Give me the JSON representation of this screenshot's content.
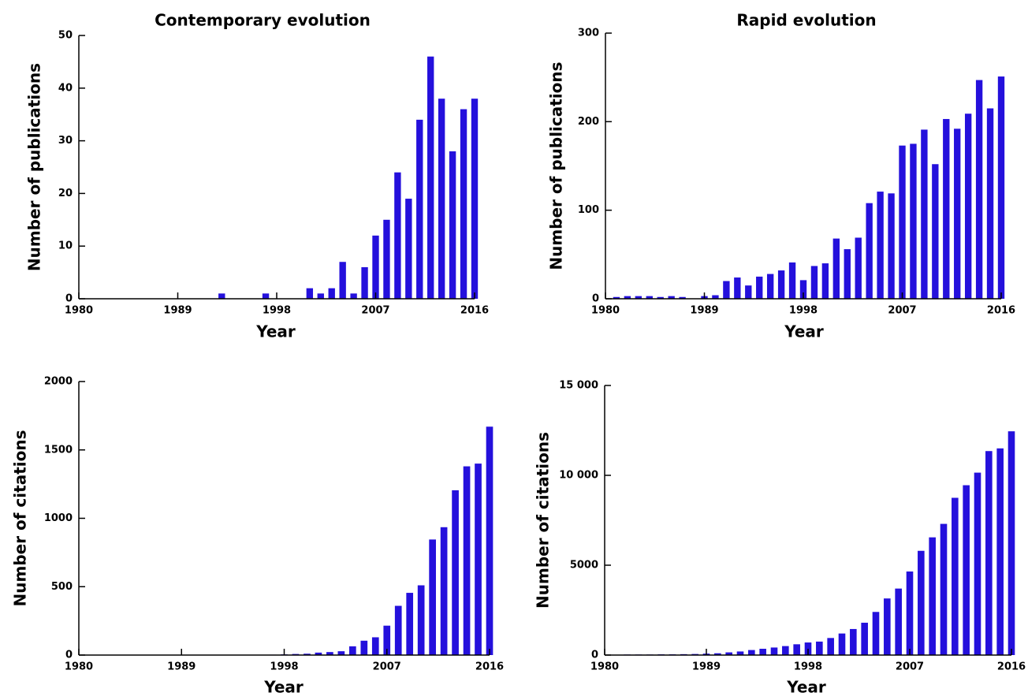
{
  "chart_data": [
    {
      "type": "bar",
      "title": "Contemporary evolution",
      "x_label": "Year",
      "y_label": "Number of publications",
      "color": "#2410dc",
      "x": [
        1980,
        1981,
        1982,
        1983,
        1984,
        1985,
        1986,
        1987,
        1988,
        1989,
        1990,
        1991,
        1992,
        1993,
        1994,
        1995,
        1996,
        1997,
        1998,
        1999,
        2000,
        2001,
        2002,
        2003,
        2004,
        2005,
        2006,
        2007,
        2008,
        2009,
        2010,
        2011,
        2012,
        2013,
        2014,
        2015,
        2016
      ],
      "values": [
        0,
        0,
        0,
        0,
        0,
        0,
        0,
        0,
        0,
        0,
        0,
        0,
        0,
        1,
        0,
        0,
        0,
        1,
        0,
        0,
        0,
        2,
        1,
        2,
        7,
        1,
        6,
        12,
        15,
        24,
        19,
        34,
        46,
        38,
        28,
        36,
        38
      ],
      "xlim": [
        1980,
        2016
      ],
      "xticks": [
        1980,
        1989,
        1998,
        2007,
        2016
      ],
      "ylim": [
        0,
        50
      ],
      "yticks": [
        0,
        10,
        20,
        30,
        40,
        50
      ]
    },
    {
      "type": "bar",
      "title": "Rapid evolution",
      "x_label": "Year",
      "y_label": "Number of publications",
      "color": "#2410dc",
      "x": [
        1980,
        1981,
        1982,
        1983,
        1984,
        1985,
        1986,
        1987,
        1988,
        1989,
        1990,
        1991,
        1992,
        1993,
        1994,
        1995,
        1996,
        1997,
        1998,
        1999,
        2000,
        2001,
        2002,
        2003,
        2004,
        2005,
        2006,
        2007,
        2008,
        2009,
        2010,
        2011,
        2012,
        2013,
        2014,
        2015,
        2016
      ],
      "values": [
        0,
        2,
        3,
        3,
        3,
        2,
        3,
        2,
        0,
        3,
        4,
        20,
        24,
        15,
        25,
        28,
        32,
        41,
        21,
        37,
        40,
        68,
        56,
        69,
        108,
        121,
        119,
        173,
        175,
        191,
        152,
        203,
        192,
        209,
        247,
        215,
        251
      ],
      "xlim": [
        1980,
        2016
      ],
      "xticks": [
        1980,
        1989,
        1998,
        2007,
        2016
      ],
      "ylim": [
        0,
        300
      ],
      "yticks": [
        0,
        100,
        200,
        300
      ]
    },
    {
      "type": "bar",
      "x_label": "Year",
      "y_label": "Number of citations",
      "color": "#2410dc",
      "x": [
        1980,
        1981,
        1982,
        1983,
        1984,
        1985,
        1986,
        1987,
        1988,
        1989,
        1990,
        1991,
        1992,
        1993,
        1994,
        1995,
        1996,
        1997,
        1998,
        1999,
        2000,
        2001,
        2002,
        2003,
        2004,
        2005,
        2006,
        2007,
        2008,
        2009,
        2010,
        2011,
        2012,
        2013,
        2014,
        2015,
        2016
      ],
      "values": [
        0,
        0,
        0,
        0,
        0,
        0,
        0,
        0,
        0,
        0,
        0,
        0,
        0,
        0,
        0,
        0,
        0,
        3,
        5,
        8,
        10,
        18,
        22,
        28,
        64,
        105,
        130,
        215,
        360,
        455,
        510,
        845,
        935,
        1205,
        1380,
        1400,
        1670
      ],
      "xlim": [
        1980,
        2016
      ],
      "xticks": [
        1980,
        1989,
        1998,
        2007,
        2016
      ],
      "ylim": [
        0,
        2000
      ],
      "yticks": [
        0,
        500,
        1000,
        1500,
        2000
      ]
    },
    {
      "type": "bar",
      "x_label": "Year",
      "y_label": "Number of citations",
      "color": "#2410dc",
      "x": [
        1980,
        1981,
        1982,
        1983,
        1984,
        1985,
        1986,
        1987,
        1988,
        1989,
        1990,
        1991,
        1992,
        1993,
        1994,
        1995,
        1996,
        1997,
        1998,
        1999,
        2000,
        2001,
        2002,
        2003,
        2004,
        2005,
        2006,
        2007,
        2008,
        2009,
        2010,
        2011,
        2012,
        2013,
        2014,
        2015,
        2016
      ],
      "values": [
        0,
        20,
        30,
        30,
        30,
        40,
        40,
        50,
        60,
        80,
        100,
        150,
        200,
        280,
        350,
        420,
        500,
        600,
        700,
        750,
        950,
        1200,
        1450,
        1800,
        2400,
        3150,
        3700,
        4650,
        5800,
        6550,
        7300,
        8750,
        9450,
        10150,
        11350,
        11500,
        12450
      ],
      "xlim": [
        1980,
        2016
      ],
      "xticks": [
        1980,
        1989,
        1998,
        2007,
        2016
      ],
      "ylim": [
        0,
        15000
      ],
      "yticks": [
        0,
        5000,
        {
          "value": 10000,
          "label": "10 000"
        },
        {
          "value": 15000,
          "label": "15 000"
        }
      ]
    }
  ]
}
